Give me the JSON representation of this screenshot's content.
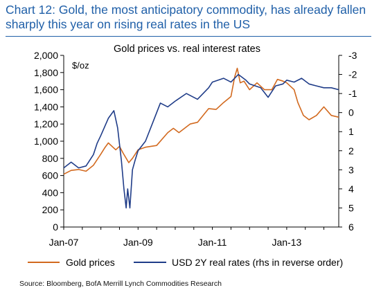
{
  "heading": {
    "line1": "Chart 12: Gold, the most anticipatory commodity, has already fallen",
    "line2": "sharply this year on rising real rates in the US"
  },
  "source": "Source: Bloomberg, BofA Merrill Lynch Commodities Research",
  "colors": {
    "gold": "#d2691e",
    "rates": "#1f3c88",
    "axis": "#000000"
  },
  "chart_data": {
    "type": "line",
    "title": "Gold prices vs. real interest rates",
    "unit_label": "$/oz",
    "x_ticks": [
      "Jan-07",
      "Jan-09",
      "Jan-11",
      "Jan-13"
    ],
    "x_range": [
      2007.0,
      2014.4
    ],
    "y_left": {
      "range": [
        0,
        2000
      ],
      "ticks": [
        "0",
        "200",
        "400",
        "600",
        "800",
        "1,000",
        "1,200",
        "1,400",
        "1,600",
        "1,800",
        "2,000"
      ]
    },
    "y_right": {
      "range": [
        6,
        -3
      ],
      "reversed": true,
      "ticks": [
        "-3",
        "-2",
        "-1",
        "0",
        "1",
        "2",
        "3",
        "4",
        "5",
        "6"
      ]
    },
    "legend": {
      "position": "bottom",
      "entries": [
        "Gold prices",
        "USD 2Y real rates (rhs in reverse order)"
      ]
    },
    "grid": false,
    "series": [
      {
        "name": "Gold prices",
        "axis": "left",
        "x": [
          2007.0,
          2007.2,
          2007.4,
          2007.6,
          2007.8,
          2008.0,
          2008.1,
          2008.2,
          2008.4,
          2008.5,
          2008.6,
          2008.75,
          2008.85,
          2009.0,
          2009.2,
          2009.5,
          2009.8,
          2009.95,
          2010.1,
          2010.4,
          2010.6,
          2010.9,
          2011.1,
          2011.3,
          2011.5,
          2011.6,
          2011.67,
          2011.75,
          2011.85,
          2012.0,
          2012.2,
          2012.4,
          2012.6,
          2012.75,
          2012.9,
          2013.0,
          2013.2,
          2013.3,
          2013.45,
          2013.6,
          2013.8,
          2014.0,
          2014.2,
          2014.4
        ],
        "y": [
          615,
          660,
          670,
          650,
          720,
          850,
          920,
          980,
          900,
          940,
          860,
          750,
          800,
          900,
          930,
          950,
          1100,
          1150,
          1100,
          1200,
          1220,
          1380,
          1370,
          1450,
          1520,
          1750,
          1850,
          1680,
          1700,
          1600,
          1680,
          1600,
          1600,
          1720,
          1700,
          1680,
          1600,
          1450,
          1300,
          1250,
          1300,
          1400,
          1300,
          1280
        ]
      },
      {
        "name": "USD 2Y real rates (rhs in reverse order)",
        "axis": "right",
        "x": [
          2007.0,
          2007.2,
          2007.4,
          2007.6,
          2007.8,
          2007.9,
          2008.0,
          2008.2,
          2008.35,
          2008.45,
          2008.55,
          2008.62,
          2008.68,
          2008.72,
          2008.78,
          2008.85,
          2008.92,
          2009.0,
          2009.2,
          2009.4,
          2009.6,
          2009.8,
          2010.0,
          2010.3,
          2010.6,
          2010.9,
          2011.0,
          2011.3,
          2011.5,
          2011.7,
          2011.9,
          2012.0,
          2012.3,
          2012.5,
          2012.7,
          2012.9,
          2013.0,
          2013.2,
          2013.4,
          2013.6,
          2013.8,
          2014.0,
          2014.2,
          2014.4
        ],
        "y": [
          2.9,
          2.6,
          2.9,
          2.8,
          2.2,
          1.6,
          1.2,
          0.3,
          -0.1,
          0.8,
          2.5,
          4.0,
          5.0,
          4.0,
          5.0,
          3.0,
          2.5,
          2.0,
          1.5,
          0.5,
          -0.5,
          -0.3,
          -0.6,
          -1.0,
          -0.7,
          -1.3,
          -1.6,
          -1.8,
          -1.6,
          -2.0,
          -1.7,
          -1.5,
          -1.3,
          -0.8,
          -1.4,
          -1.5,
          -1.7,
          -1.6,
          -1.8,
          -1.5,
          -1.4,
          -1.3,
          -1.3,
          -1.2
        ]
      }
    ]
  }
}
